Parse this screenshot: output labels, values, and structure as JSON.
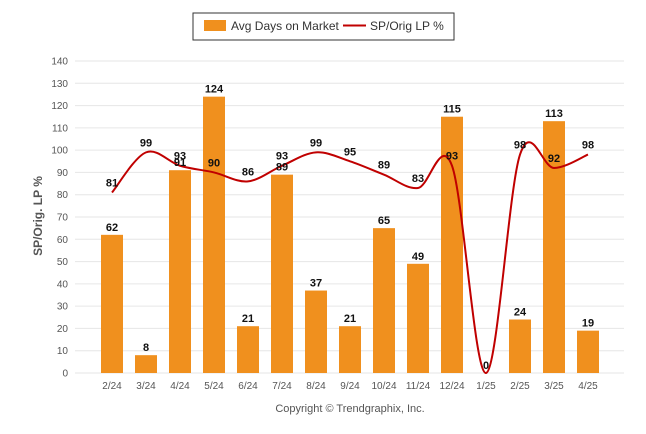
{
  "chart_data": {
    "type": "bar",
    "categories": [
      "2/24",
      "3/24",
      "4/24",
      "5/24",
      "6/24",
      "7/24",
      "8/24",
      "9/24",
      "10/24",
      "11/24",
      "12/24",
      "1/25",
      "2/25",
      "3/25",
      "4/25"
    ],
    "series": [
      {
        "name": "Avg Days on Market",
        "type": "bar",
        "color": "#F0901E",
        "values": [
          62,
          8,
          91,
          124,
          21,
          89,
          37,
          21,
          65,
          49,
          115,
          0,
          24,
          113,
          19
        ]
      },
      {
        "name": "SP/Orig LP %",
        "type": "line",
        "color": "#C00000",
        "values": [
          81,
          99,
          93,
          90,
          86,
          93,
          99,
          95,
          89,
          83,
          93,
          0,
          98,
          92,
          98
        ]
      }
    ],
    "ylabel": "SP/Orig. LP %",
    "ylim": [
      0,
      140
    ],
    "yticks": [
      0,
      10,
      20,
      30,
      40,
      50,
      60,
      70,
      80,
      90,
      100,
      110,
      120,
      130,
      140
    ],
    "grid": true,
    "legend": "top-center"
  },
  "footer": {
    "copyright": "Copyright © Trendgraphix, Inc."
  }
}
